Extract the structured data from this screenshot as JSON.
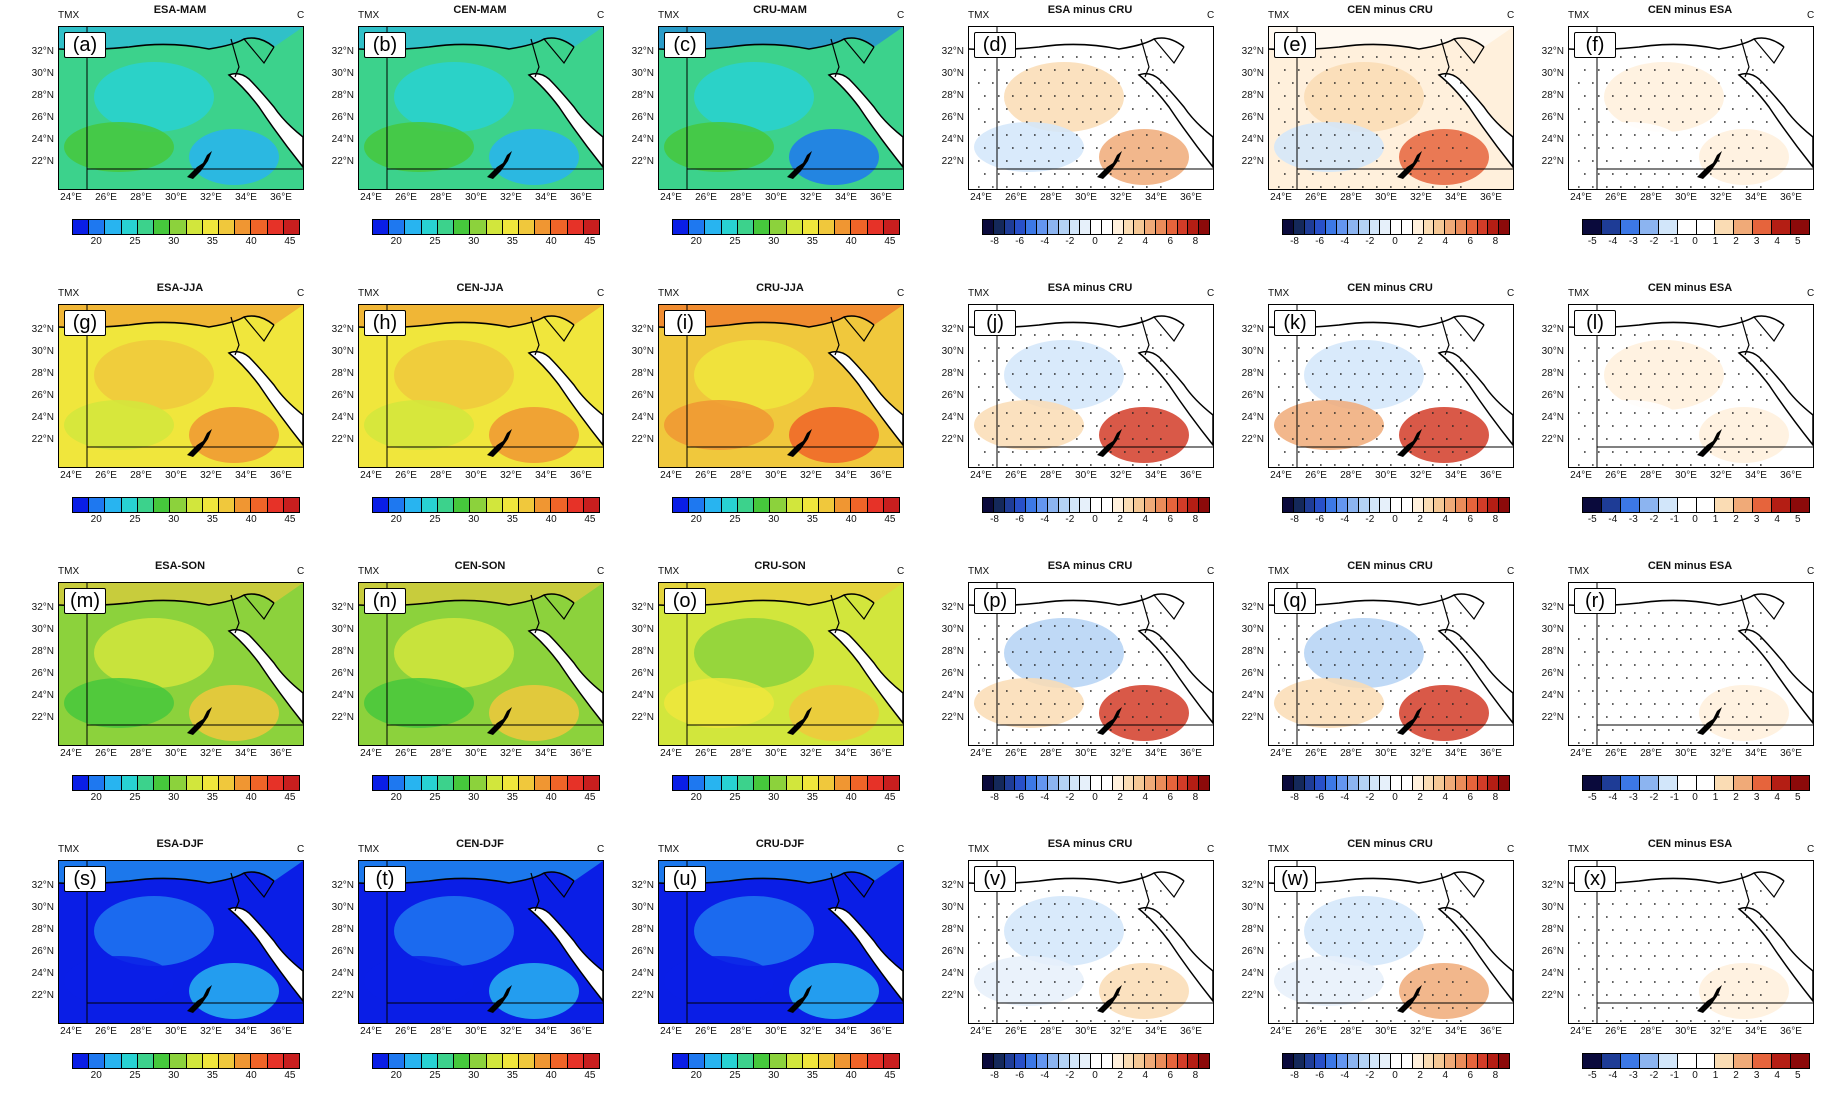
{
  "common": {
    "var_label": "TMX",
    "unit": "C",
    "lat_labels": [
      "32°N",
      "30°N",
      "28°N",
      "26°N",
      "24°N",
      "22°N"
    ],
    "lon_labels": [
      "24°E",
      "26°E",
      "28°E",
      "30°E",
      "32°E",
      "34°E",
      "36°E"
    ],
    "cbar_temp_ticks": [
      "20",
      "25",
      "30",
      "35",
      "40",
      "45"
    ],
    "cbar_diff8_ticks": [
      "-8",
      "-6",
      "-4",
      "-2",
      "0",
      "2",
      "4",
      "6",
      "8"
    ],
    "cbar_diff5_ticks": [
      "-5",
      "-4",
      "-3",
      "-2",
      "-1",
      "0",
      "1",
      "2",
      "3",
      "4",
      "5"
    ],
    "cbar_diff8_short_ticks": [
      "-8",
      "-6",
      "-4",
      "-2",
      "0",
      "2",
      "4",
      "6",
      "8"
    ],
    "colors": {
      "temp_scale": [
        "#0a1ee6",
        "#1e78f0",
        "#28b4f0",
        "#28d2d2",
        "#3cd28c",
        "#46c83c",
        "#8cd23c",
        "#d2e63c",
        "#f0e63c",
        "#f0c83c",
        "#f09632",
        "#f06428",
        "#e63228",
        "#c81e1e"
      ],
      "diff_scale": [
        "#0a0a3c",
        "#14285a",
        "#1e3c96",
        "#2850c8",
        "#3c78e6",
        "#6496f0",
        "#8cb4f0",
        "#b4d2f5",
        "#d2e6fa",
        "#e6f0fa",
        "#ffffff",
        "#ffffff",
        "#fff0dc",
        "#fadcb4",
        "#f5c896",
        "#f0aa78",
        "#eb8c5a",
        "#e6643c",
        "#d23c28",
        "#b41e14",
        "#8c0a0a"
      ],
      "diff5_scale": [
        "#0a0a3c",
        "#1e3c96",
        "#3c78e6",
        "#8cb4f0",
        "#d2e6fa",
        "#ffffff",
        "#ffffff",
        "#fadcb4",
        "#f0aa78",
        "#e6643c",
        "#b41e14",
        "#8c0a0a"
      ]
    }
  },
  "rows": [
    {
      "panels": [
        {
          "title": "ESA-MAM",
          "label": "(a)",
          "kind": "temp",
          "base": "#3cd28c",
          "blobs": [
            "#28d2d2",
            "#46c83c",
            "#28b4f0"
          ]
        },
        {
          "title": "CEN-MAM",
          "label": "(b)",
          "kind": "temp",
          "base": "#3cd28c",
          "blobs": [
            "#28d2d2",
            "#46c83c",
            "#28b4f0"
          ]
        },
        {
          "title": "CRU-MAM",
          "label": "(c)",
          "kind": "temp",
          "base": "#3cd28c",
          "blobs": [
            "#28d2d2",
            "#46c83c",
            "#1e78f0"
          ]
        },
        {
          "title": "ESA minus CRU",
          "label": "(d)",
          "kind": "diff8",
          "base": "#ffffff",
          "blobs": [
            "#fadcb4",
            "#d2e6fa",
            "#f0aa78"
          ]
        },
        {
          "title": "CEN minus CRU",
          "label": "(e)",
          "kind": "diff8",
          "base": "#fff0dc",
          "blobs": [
            "#fadcb4",
            "#d2e6fa",
            "#e6643c"
          ]
        },
        {
          "title": "CEN minus ESA",
          "label": "(f)",
          "kind": "diff5",
          "base": "#ffffff",
          "blobs": [
            "#fff0dc",
            "#ffffff",
            "#fff0dc"
          ]
        }
      ]
    },
    {
      "panels": [
        {
          "title": "ESA-JJA",
          "label": "(g)",
          "kind": "temp",
          "base": "#f0e63c",
          "blobs": [
            "#f0c83c",
            "#d2e63c",
            "#f09632"
          ]
        },
        {
          "title": "CEN-JJA",
          "label": "(h)",
          "kind": "temp",
          "base": "#f0e63c",
          "blobs": [
            "#f0c83c",
            "#d2e63c",
            "#f09632"
          ]
        },
        {
          "title": "CRU-JJA",
          "label": "(i)",
          "kind": "temp",
          "base": "#f0c83c",
          "blobs": [
            "#f0e63c",
            "#f09632",
            "#f06428"
          ]
        },
        {
          "title": "ESA minus CRU",
          "label": "(j)",
          "kind": "diff8",
          "base": "#ffffff",
          "blobs": [
            "#d2e6fa",
            "#fadcb4",
            "#d23c28"
          ]
        },
        {
          "title": "CEN minus CRU",
          "label": "(k)",
          "kind": "diff8",
          "base": "#ffffff",
          "blobs": [
            "#d2e6fa",
            "#f0aa78",
            "#d23c28"
          ]
        },
        {
          "title": "CEN minus ESA",
          "label": "(l)",
          "kind": "diff5",
          "base": "#ffffff",
          "blobs": [
            "#fff0dc",
            "#ffffff",
            "#fff0dc"
          ]
        }
      ]
    },
    {
      "panels": [
        {
          "title": "ESA-SON",
          "label": "(m)",
          "kind": "temp",
          "base": "#8cd23c",
          "blobs": [
            "#d2e63c",
            "#46c83c",
            "#f0c83c"
          ]
        },
        {
          "title": "CEN-SON",
          "label": "(n)",
          "kind": "temp",
          "base": "#8cd23c",
          "blobs": [
            "#d2e63c",
            "#46c83c",
            "#f0c83c"
          ]
        },
        {
          "title": "CRU-SON",
          "label": "(o)",
          "kind": "temp",
          "base": "#d2e63c",
          "blobs": [
            "#8cd23c",
            "#f0e63c",
            "#f0c83c"
          ]
        },
        {
          "title": "ESA minus CRU",
          "label": "(p)",
          "kind": "diff8",
          "base": "#ffffff",
          "blobs": [
            "#b4d2f5",
            "#fadcb4",
            "#d23c28"
          ]
        },
        {
          "title": "CEN minus CRU",
          "label": "(q)",
          "kind": "diff8",
          "base": "#ffffff",
          "blobs": [
            "#b4d2f5",
            "#fadcb4",
            "#d23c28"
          ]
        },
        {
          "title": "CEN minus ESA",
          "label": "(r)",
          "kind": "diff5",
          "base": "#ffffff",
          "blobs": [
            "#ffffff",
            "#ffffff",
            "#fff0dc"
          ]
        }
      ]
    },
    {
      "panels": [
        {
          "title": "ESA-DJF",
          "label": "(s)",
          "kind": "temp",
          "base": "#0a1ee6",
          "blobs": [
            "#1e78f0",
            "#0a1ee6",
            "#28b4f0"
          ]
        },
        {
          "title": "CEN-DJF",
          "label": "(t)",
          "kind": "temp",
          "base": "#0a1ee6",
          "blobs": [
            "#1e78f0",
            "#0a1ee6",
            "#28b4f0"
          ]
        },
        {
          "title": "CRU-DJF",
          "label": "(u)",
          "kind": "temp",
          "base": "#0a1ee6",
          "blobs": [
            "#1e78f0",
            "#0a1ee6",
            "#28b4f0"
          ]
        },
        {
          "title": "ESA minus CRU",
          "label": "(v)",
          "kind": "diff8",
          "base": "#ffffff",
          "blobs": [
            "#d2e6fa",
            "#e6f0fa",
            "#fadcb4"
          ]
        },
        {
          "title": "CEN minus CRU",
          "label": "(w)",
          "kind": "diff8",
          "base": "#ffffff",
          "blobs": [
            "#d2e6fa",
            "#e6f0fa",
            "#f0aa78"
          ]
        },
        {
          "title": "CEN minus ESA",
          "label": "(x)",
          "kind": "diff5",
          "base": "#ffffff",
          "blobs": [
            "#ffffff",
            "#ffffff",
            "#fff0dc"
          ]
        }
      ]
    }
  ]
}
